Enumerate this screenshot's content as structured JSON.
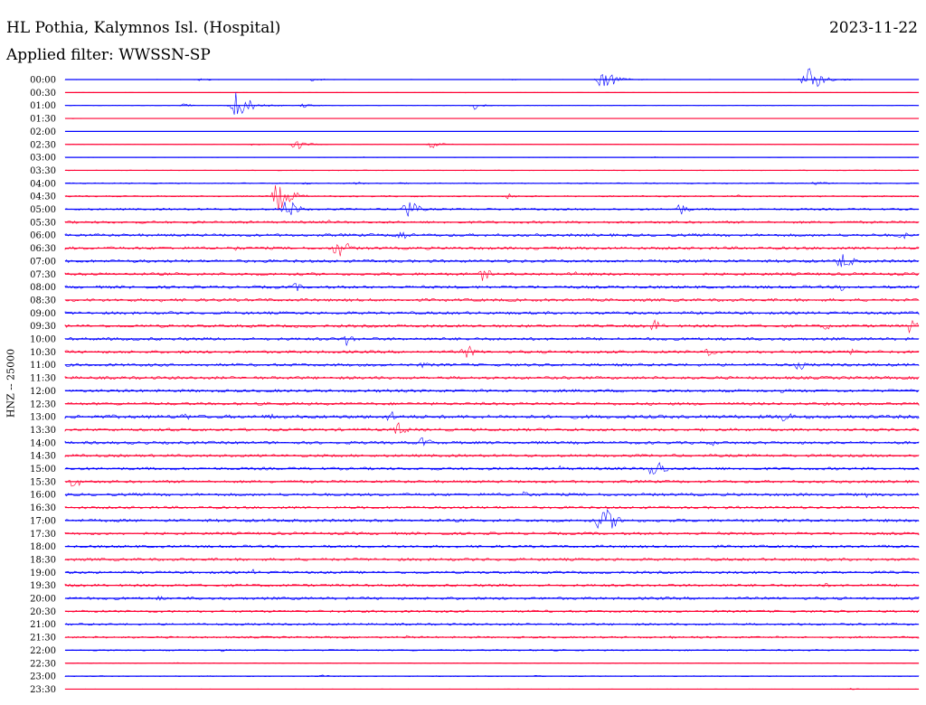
{
  "header": {
    "station": "HL Pothia, Kalymnos Isl. (Hospital)",
    "date": "2023-11-22",
    "filter": "Applied filter: WWSSN-SP"
  },
  "chart_data": {
    "type": "line",
    "title": "HL Pothia, Kalymnos Isl. (Hospital)",
    "subtitle": "Applied filter: WWSSN-SP",
    "date": "2023-11-22",
    "ylabel": "HNZ -- 25000",
    "xlabel": "",
    "grid": false,
    "legend": "none",
    "colors": [
      "#0000ff",
      "#ff0033"
    ],
    "row_minutes": 30,
    "rows": [
      {
        "label": "00:00",
        "level": 0.05,
        "events": [
          [
            0.16,
            0.3
          ],
          [
            0.29,
            0.35
          ],
          [
            0.52,
            0.2
          ],
          [
            0.63,
            0.85
          ],
          [
            0.87,
            0.95
          ]
        ]
      },
      {
        "label": "00:30",
        "level": 0.04,
        "events": [
          [
            0.32,
            0.1
          ],
          [
            0.47,
            0.1
          ]
        ]
      },
      {
        "label": "01:00",
        "level": 0.05,
        "events": [
          [
            0.14,
            0.35
          ],
          [
            0.2,
            1.0
          ],
          [
            0.28,
            0.4
          ],
          [
            0.48,
            0.45
          ]
        ]
      },
      {
        "label": "01:30",
        "level": 0.03,
        "events": [
          [
            0.01,
            0.1
          ]
        ]
      },
      {
        "label": "02:00",
        "level": 0.03,
        "events": [
          [
            0.7,
            0.1
          ],
          [
            0.93,
            0.1
          ]
        ]
      },
      {
        "label": "02:30",
        "level": 0.04,
        "events": [
          [
            0.22,
            0.25
          ],
          [
            0.27,
            0.6
          ],
          [
            0.43,
            0.45
          ]
        ]
      },
      {
        "label": "03:00",
        "level": 0.05,
        "events": [
          [
            0.69,
            0.2
          ],
          [
            0.35,
            0.15
          ]
        ]
      },
      {
        "label": "03:30",
        "level": 0.08,
        "events": [
          [
            0.72,
            0.15
          ],
          [
            0.95,
            0.15
          ]
        ]
      },
      {
        "label": "04:00",
        "level": 0.12,
        "events": [
          [
            0.28,
            0.3
          ],
          [
            0.34,
            0.35
          ],
          [
            0.39,
            0.3
          ],
          [
            0.88,
            0.4
          ]
        ]
      },
      {
        "label": "04:30",
        "level": 0.15,
        "events": [
          [
            0.25,
            1.0
          ],
          [
            0.52,
            0.4
          ],
          [
            0.79,
            0.3
          ]
        ]
      },
      {
        "label": "05:00",
        "level": 0.2,
        "events": [
          [
            0.26,
            0.8
          ],
          [
            0.4,
            0.8
          ],
          [
            0.72,
            0.6
          ],
          [
            0.95,
            0.3
          ]
        ]
      },
      {
        "label": "05:30",
        "level": 0.25,
        "events": [
          [
            0.31,
            0.35
          ],
          [
            0.95,
            0.3
          ]
        ]
      },
      {
        "label": "06:00",
        "level": 0.3,
        "events": [
          [
            0.39,
            0.65
          ],
          [
            0.98,
            0.5
          ]
        ]
      },
      {
        "label": "06:30",
        "level": 0.3,
        "events": [
          [
            0.32,
            0.8
          ],
          [
            0.2,
            0.4
          ],
          [
            0.93,
            0.3
          ]
        ]
      },
      {
        "label": "07:00",
        "level": 0.3,
        "events": [
          [
            0.75,
            0.5
          ],
          [
            0.91,
            0.75
          ]
        ]
      },
      {
        "label": "07:30",
        "level": 0.3,
        "events": [
          [
            0.49,
            0.6
          ],
          [
            0.6,
            0.4
          ]
        ]
      },
      {
        "label": "08:00",
        "level": 0.3,
        "events": [
          [
            0.27,
            0.5
          ],
          [
            0.6,
            0.3
          ],
          [
            0.91,
            0.45
          ]
        ]
      },
      {
        "label": "08:30",
        "level": 0.3,
        "events": [
          [
            0.11,
            0.4
          ],
          [
            0.9,
            0.3
          ]
        ]
      },
      {
        "label": "09:00",
        "level": 0.3,
        "events": [
          [
            0.46,
            0.4
          ],
          [
            0.8,
            0.3
          ]
        ]
      },
      {
        "label": "09:30",
        "level": 0.3,
        "events": [
          [
            0.69,
            0.6
          ],
          [
            0.89,
            0.5
          ],
          [
            0.99,
            0.6
          ]
        ]
      },
      {
        "label": "10:00",
        "level": 0.3,
        "events": [
          [
            0.33,
            0.6
          ],
          [
            0.6,
            0.3
          ]
        ]
      },
      {
        "label": "10:30",
        "level": 0.3,
        "events": [
          [
            0.47,
            0.65
          ],
          [
            0.75,
            0.6
          ],
          [
            0.92,
            0.5
          ]
        ]
      },
      {
        "label": "11:00",
        "level": 0.3,
        "events": [
          [
            0.42,
            0.45
          ],
          [
            0.86,
            0.55
          ]
        ]
      },
      {
        "label": "11:30",
        "level": 0.3,
        "events": [
          [
            0.35,
            0.3
          ],
          [
            0.6,
            0.3
          ]
        ]
      },
      {
        "label": "12:00",
        "level": 0.3,
        "events": [
          [
            0.38,
            0.4
          ],
          [
            0.84,
            0.35
          ]
        ]
      },
      {
        "label": "12:30",
        "level": 0.3,
        "events": [
          [
            0.46,
            0.3
          ],
          [
            0.7,
            0.35
          ]
        ]
      },
      {
        "label": "13:00",
        "level": 0.32,
        "events": [
          [
            0.14,
            0.5
          ],
          [
            0.24,
            0.45
          ],
          [
            0.38,
            0.6
          ],
          [
            0.84,
            0.65
          ]
        ]
      },
      {
        "label": "13:30",
        "level": 0.3,
        "events": [
          [
            0.39,
            0.65
          ],
          [
            0.12,
            0.4
          ]
        ]
      },
      {
        "label": "14:00",
        "level": 0.3,
        "events": [
          [
            0.42,
            0.6
          ],
          [
            0.76,
            0.4
          ]
        ]
      },
      {
        "label": "14:30",
        "level": 0.28,
        "events": [
          [
            0.52,
            0.35
          ],
          [
            0.98,
            0.3
          ]
        ]
      },
      {
        "label": "15:00",
        "level": 0.3,
        "events": [
          [
            0.69,
            0.8
          ],
          [
            0.58,
            0.4
          ]
        ]
      },
      {
        "label": "15:30",
        "level": 0.28,
        "events": [
          [
            0.01,
            0.6
          ],
          [
            0.5,
            0.25
          ]
        ]
      },
      {
        "label": "16:00",
        "level": 0.3,
        "events": [
          [
            0.54,
            0.5
          ],
          [
            0.94,
            0.4
          ]
        ]
      },
      {
        "label": "16:30",
        "level": 0.28,
        "events": [
          [
            0.51,
            0.3
          ],
          [
            0.8,
            0.3
          ]
        ]
      },
      {
        "label": "17:00",
        "level": 0.3,
        "events": [
          [
            0.63,
            1.0
          ],
          [
            0.24,
            0.35
          ]
        ]
      },
      {
        "label": "17:30",
        "level": 0.28,
        "events": [
          [
            0.3,
            0.3
          ],
          [
            0.72,
            0.3
          ]
        ]
      },
      {
        "label": "18:00",
        "level": 0.28,
        "events": [
          [
            0.46,
            0.3
          ],
          [
            0.8,
            0.3
          ]
        ]
      },
      {
        "label": "18:30",
        "level": 0.28,
        "events": [
          [
            0.28,
            0.3
          ],
          [
            0.64,
            0.3
          ]
        ]
      },
      {
        "label": "19:00",
        "level": 0.28,
        "events": [
          [
            0.22,
            0.4
          ],
          [
            0.42,
            0.35
          ],
          [
            0.81,
            0.35
          ]
        ]
      },
      {
        "label": "19:30",
        "level": 0.28,
        "events": [
          [
            0.32,
            0.3
          ],
          [
            0.89,
            0.4
          ]
        ]
      },
      {
        "label": "20:00",
        "level": 0.28,
        "events": [
          [
            0.11,
            0.4
          ],
          [
            0.73,
            0.3
          ]
        ]
      },
      {
        "label": "20:30",
        "level": 0.25,
        "events": [
          [
            0.43,
            0.3
          ],
          [
            0.91,
            0.3
          ]
        ]
      },
      {
        "label": "21:00",
        "level": 0.22,
        "events": [
          [
            0.55,
            0.3
          ],
          [
            0.86,
            0.35
          ]
        ]
      },
      {
        "label": "21:30",
        "level": 0.2,
        "events": [
          [
            0.4,
            0.35
          ],
          [
            0.71,
            0.3
          ]
        ]
      },
      {
        "label": "22:00",
        "level": 0.15,
        "events": [
          [
            0.18,
            0.35
          ],
          [
            0.56,
            0.25
          ]
        ]
      },
      {
        "label": "22:30",
        "level": 0.08,
        "events": [
          [
            0.13,
            0.2
          ],
          [
            0.82,
            0.2
          ]
        ]
      },
      {
        "label": "23:00",
        "level": 0.1,
        "events": [
          [
            0.3,
            0.3
          ],
          [
            0.55,
            0.2
          ]
        ]
      },
      {
        "label": "23:30",
        "level": 0.05,
        "events": [
          [
            0.92,
            0.2
          ]
        ]
      }
    ]
  }
}
